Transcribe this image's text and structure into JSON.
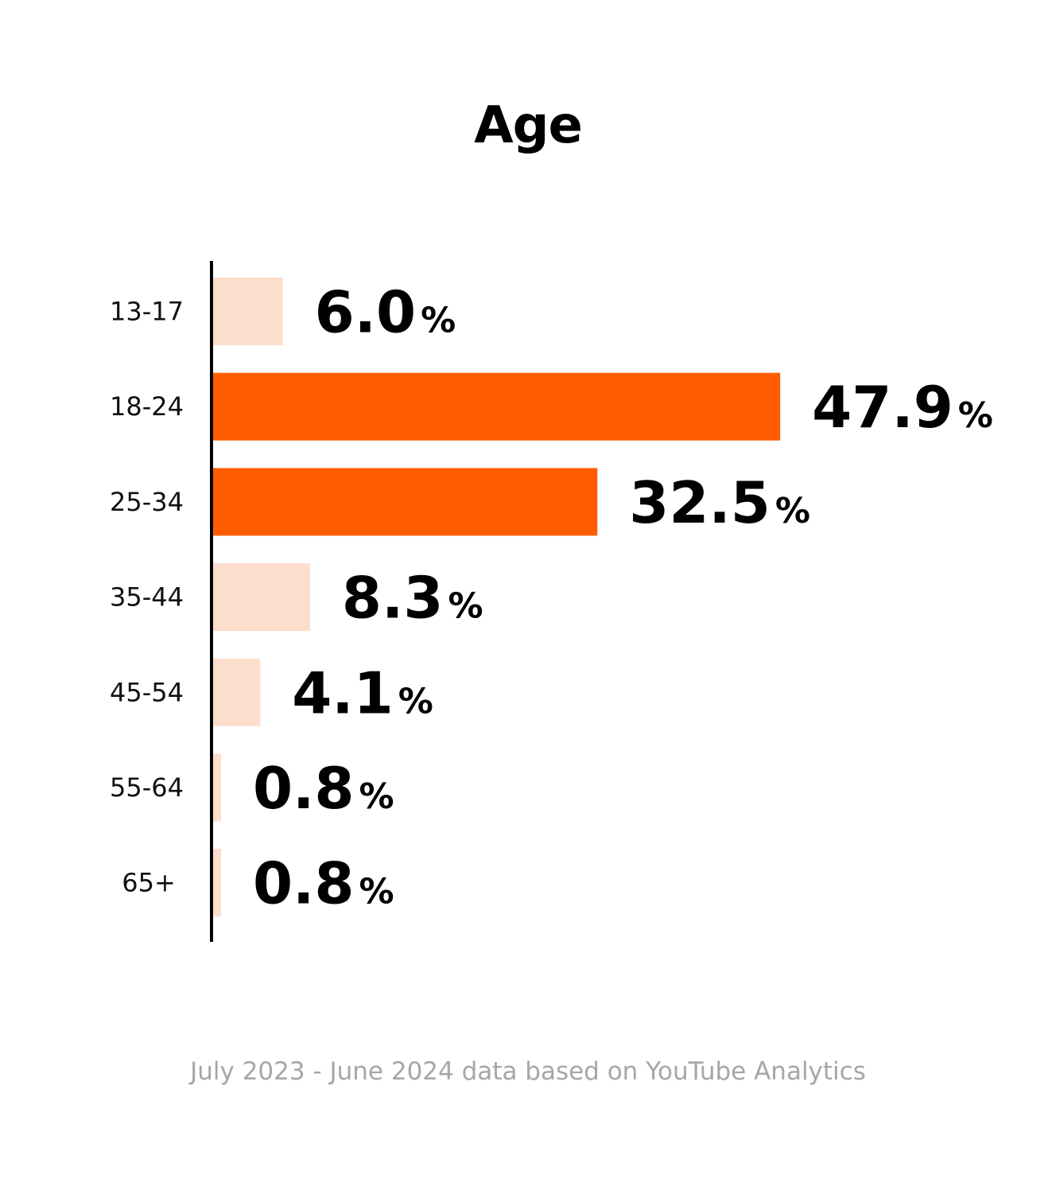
{
  "chart_data": {
    "type": "bar",
    "orientation": "horizontal",
    "title": "Age",
    "categories": [
      "13-17",
      "18-24",
      "25-34",
      "35-44",
      "45-54",
      "55-64",
      "65+"
    ],
    "values": [
      6.0,
      47.9,
      32.5,
      8.3,
      4.1,
      0.8,
      0.8
    ],
    "value_labels": [
      "6.0",
      "47.9",
      "32.5",
      "8.3",
      "4.1",
      "0.8",
      "0.8"
    ],
    "unit": "%",
    "xlim": [
      0,
      50
    ],
    "grid": false,
    "legend": "none",
    "colors": {
      "highlight": "#ff5c00",
      "muted": "#fdddcc",
      "axis": "#000000"
    },
    "highlighted": [
      "18-24",
      "25-34"
    ]
  },
  "footnote": "July 2023 - June 2024 data based on YouTube Analytics"
}
